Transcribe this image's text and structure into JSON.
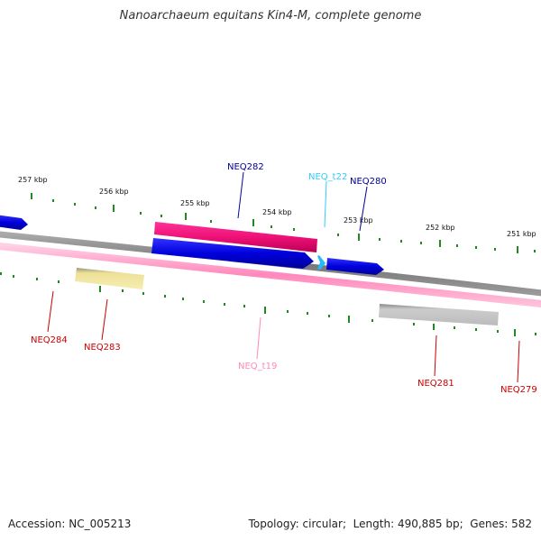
{
  "title": "Nanoarchaeum equitans Kin4-M, complete genome",
  "footer": {
    "accession_label": "Accession:",
    "accession": "NC_005213",
    "topology_label": "Topology:",
    "topology": "circular",
    "length_label": "Length:",
    "length": "490,885 bp",
    "genes_label": "Genes:",
    "genes": "582"
  },
  "scale_labels": [
    "257 kbp",
    "256 kbp",
    "255 kbp",
    "254 kbp",
    "253 kbp",
    "252 kbp",
    "251 kbp"
  ],
  "genes": [
    {
      "name": "NEQ282",
      "color": "#000099"
    },
    {
      "name": "NEQ_t22",
      "color": "#33ccff"
    },
    {
      "name": "NEQ280",
      "color": "#000099"
    },
    {
      "name": "NEQ284",
      "color": "#cc0000"
    },
    {
      "name": "NEQ283",
      "color": "#cc0000"
    },
    {
      "name": "NEQ_t19",
      "color": "#ff88bb"
    },
    {
      "name": "NEQ281",
      "color": "#cc0000"
    },
    {
      "name": "NEQ279",
      "color": "#cc0000"
    }
  ],
  "colors": {
    "blue_gene": "#0000ee",
    "magenta_gene": "#ee1177",
    "yellow_gene": "#eee199",
    "gray_gene": "#bbbbbb",
    "backbone_gray": "#888888",
    "backbone_pink": "#ff99cc",
    "tick_green": "#228822",
    "trna_cyan": "#22bbff"
  }
}
